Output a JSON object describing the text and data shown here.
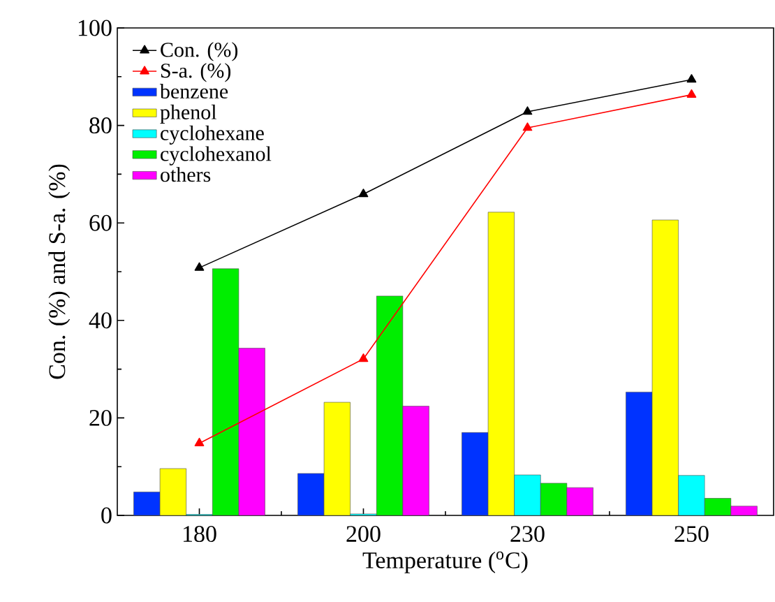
{
  "chart_data": {
    "type": "bar",
    "xlabel": "Temperature ($^{o}$C)",
    "ylabel": "Con. (%) and S-a. (%)",
    "categories": [
      "180",
      "200",
      "230",
      "250"
    ],
    "series": [
      {
        "name": "Con. (%)",
        "type": "line",
        "color": "#000000",
        "values": [
          50.8,
          65.9,
          82.8,
          89.4
        ]
      },
      {
        "name": "S-a. (%)",
        "type": "line",
        "color": "#ff0000",
        "values": [
          14.8,
          32.1,
          79.5,
          86.3
        ]
      },
      {
        "name": "benzene",
        "color": "#0033ff",
        "values": [
          4.8,
          8.6,
          17.0,
          25.3
        ]
      },
      {
        "name": "phenol",
        "color": "#ffff00",
        "values": [
          9.6,
          23.2,
          62.2,
          60.6
        ]
      },
      {
        "name": "cyclohexane",
        "color": "#00ffff",
        "values": [
          0.2,
          0.3,
          8.3,
          8.2
        ]
      },
      {
        "name": "cyclohexanol",
        "color": "#00ee00",
        "values": [
          50.6,
          45.0,
          6.6,
          3.5
        ]
      },
      {
        "name": "others",
        "color": "#ff00ff",
        "values": [
          34.3,
          22.4,
          5.7,
          1.9
        ]
      }
    ],
    "ylim": [
      0,
      100
    ],
    "yticks": [
      0,
      20,
      40,
      60,
      80,
      100
    ],
    "grid": false,
    "legend": "top left",
    "marker": "triangle",
    "line_style": "solid"
  }
}
